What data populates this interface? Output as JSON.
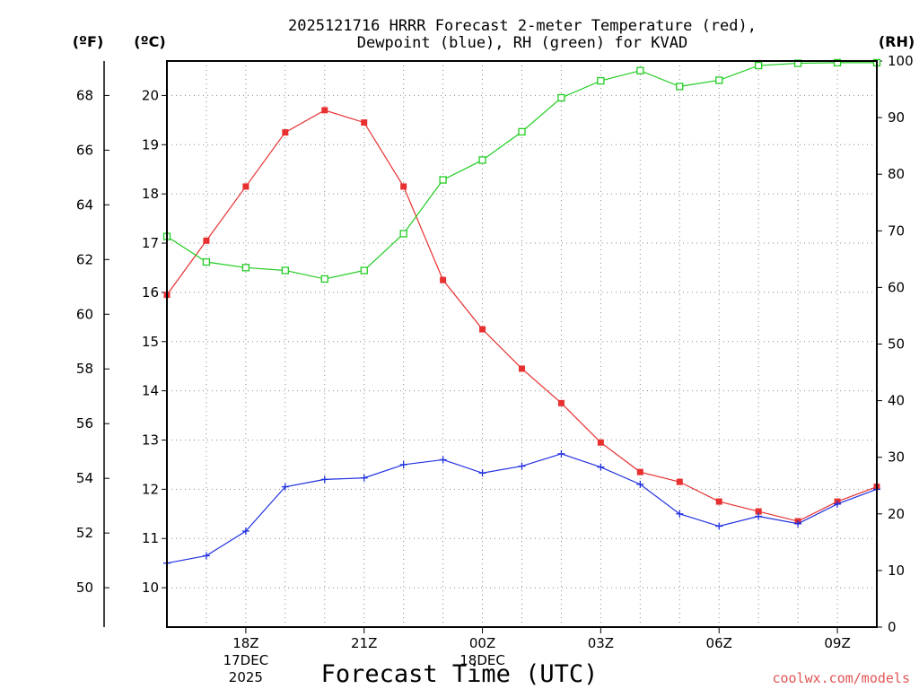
{
  "chart_data": {
    "type": "line",
    "title_lines": [
      "2025121716 HRRR Forecast 2-meter Temperature (red),",
      "Dewpoint (blue), RH (green) for KVAD"
    ],
    "units": {
      "fahrenheit": "(ºF)",
      "celsius": "(ºC)",
      "rh": "(RH)"
    },
    "xlabel": "Forecast Time (UTC)",
    "credit": "coolwx.com/models",
    "x_hours": [
      16,
      17,
      18,
      19,
      20,
      21,
      22,
      23,
      24,
      25,
      26,
      27,
      28,
      29,
      30,
      31,
      32,
      33,
      34
    ],
    "xlim": [
      16,
      34
    ],
    "x_ticks": [
      {
        "hour": 18,
        "lines": [
          "18Z",
          "17DEC",
          "2025"
        ]
      },
      {
        "hour": 21,
        "lines": [
          "21Z"
        ]
      },
      {
        "hour": 24,
        "lines": [
          "00Z",
          "18DEC"
        ]
      },
      {
        "hour": 27,
        "lines": [
          "03Z"
        ]
      },
      {
        "hour": 30,
        "lines": [
          "06Z"
        ]
      },
      {
        "hour": 33,
        "lines": [
          "09Z"
        ]
      }
    ],
    "celsius_axis": {
      "range": [
        9.2,
        20.7
      ],
      "ticks": [
        "10",
        "11",
        "12",
        "13",
        "14",
        "15",
        "16",
        "17",
        "18",
        "19",
        "20"
      ]
    },
    "fahrenheit_axis": {
      "ticks": [
        "50",
        "52",
        "54",
        "56",
        "58",
        "60",
        "62",
        "64",
        "66",
        "68"
      ]
    },
    "rh_axis": {
      "range": [
        0,
        100
      ],
      "ticks": [
        "0",
        "10",
        "20",
        "30",
        "40",
        "50",
        "60",
        "70",
        "80",
        "90",
        "100"
      ]
    },
    "series": [
      {
        "name": "Temperature",
        "unit": "C",
        "axis": "celsius",
        "color": "#e83030",
        "marker": "filled-square",
        "values": [
          15.95,
          17.05,
          18.15,
          19.25,
          19.7,
          19.45,
          18.15,
          16.25,
          15.25,
          14.45,
          13.75,
          12.95,
          12.35,
          12.15,
          11.75,
          11.55,
          11.35,
          11.75,
          12.05
        ]
      },
      {
        "name": "Dewpoint",
        "unit": "C",
        "axis": "celsius",
        "color": "#2030e0",
        "marker": "plus",
        "values": [
          10.5,
          10.65,
          11.15,
          12.05,
          12.2,
          12.23,
          12.5,
          12.6,
          12.33,
          12.47,
          12.72,
          12.45,
          12.1,
          11.5,
          11.25,
          11.45,
          11.3,
          11.7,
          12.0
        ]
      },
      {
        "name": "Relative Humidity",
        "unit": "%",
        "axis": "rh",
        "color": "#22cc22",
        "marker": "open-square",
        "values": [
          69,
          64.5,
          63.5,
          63,
          61.5,
          63,
          69.5,
          79,
          82.5,
          87.5,
          93.5,
          96.5,
          98.3,
          95.5,
          96.6,
          99.2,
          99.6,
          99.7,
          99.7
        ]
      }
    ]
  }
}
